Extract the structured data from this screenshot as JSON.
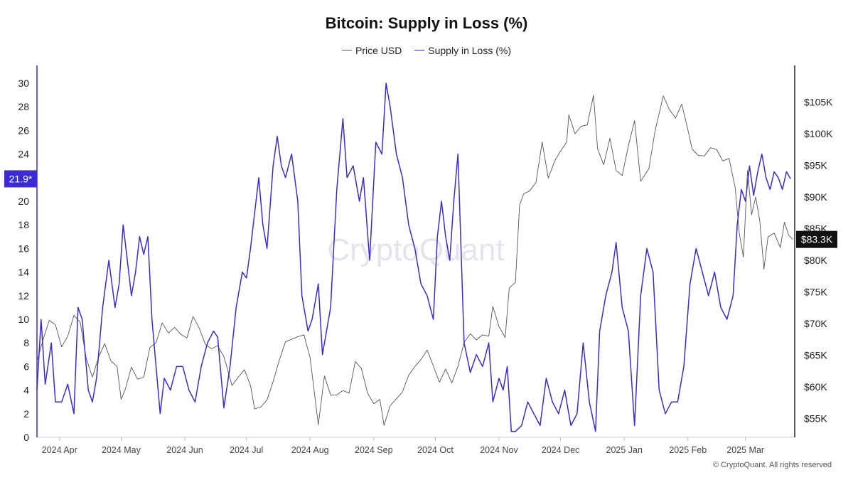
{
  "chart_data": {
    "type": "line",
    "title": "Bitcoin: Supply in Loss (%)",
    "legend": {
      "placement": "top-center"
    },
    "x_ticks": [
      "2024 Apr",
      "2024 May",
      "2024 Jun",
      "2024 Jul",
      "2024 Aug",
      "2024 Sep",
      "2024 Oct",
      "2024 Nov",
      "2024 Dec",
      "2025 Jan",
      "2025 Feb",
      "2025 Mar"
    ],
    "xlim": [
      "2024-03-21",
      "2025-03-25"
    ],
    "y_left": {
      "ticks": [
        0,
        2,
        4,
        6,
        8,
        10,
        12,
        14,
        16,
        18,
        20,
        22,
        24,
        26,
        28,
        30
      ],
      "range": [
        0,
        30
      ],
      "current_badge": "21.9*"
    },
    "y_right": {
      "ticks": [
        "$55K",
        "$60K",
        "$65K",
        "$70K",
        "$75K",
        "$80K",
        "$85K",
        "$90K",
        "$95K",
        "$100K",
        "$105K"
      ],
      "range": [
        52000,
        108000
      ],
      "current_badge": "$83.3K"
    },
    "series": [
      {
        "name": "Price USD",
        "axis": "right",
        "color": "#555555",
        "points": [
          [
            "2024-03-21",
            64000
          ],
          [
            "2024-03-24",
            67500
          ],
          [
            "2024-03-27",
            70500
          ],
          [
            "2024-03-30",
            69800
          ],
          [
            "2024-04-02",
            66300
          ],
          [
            "2024-04-05",
            68000
          ],
          [
            "2024-04-08",
            71300
          ],
          [
            "2024-04-11",
            70200
          ],
          [
            "2024-04-14",
            64500
          ],
          [
            "2024-04-17",
            61500
          ],
          [
            "2024-04-20",
            64700
          ],
          [
            "2024-04-23",
            66800
          ],
          [
            "2024-04-26",
            64100
          ],
          [
            "2024-04-29",
            63200
          ],
          [
            "2024-05-01",
            58000
          ],
          [
            "2024-05-03",
            59600
          ],
          [
            "2024-05-06",
            63100
          ],
          [
            "2024-05-09",
            61200
          ],
          [
            "2024-05-12",
            61500
          ],
          [
            "2024-05-15",
            66200
          ],
          [
            "2024-05-18",
            67000
          ],
          [
            "2024-05-21",
            70100
          ],
          [
            "2024-05-24",
            68500
          ],
          [
            "2024-05-27",
            69400
          ],
          [
            "2024-05-30",
            68300
          ],
          [
            "2024-06-02",
            67700
          ],
          [
            "2024-06-05",
            71100
          ],
          [
            "2024-06-08",
            69300
          ],
          [
            "2024-06-11",
            66700
          ],
          [
            "2024-06-14",
            66000
          ],
          [
            "2024-06-17",
            66500
          ],
          [
            "2024-06-20",
            64800
          ],
          [
            "2024-06-24",
            60200
          ],
          [
            "2024-06-27",
            61500
          ],
          [
            "2024-06-30",
            62700
          ],
          [
            "2024-07-03",
            60200
          ],
          [
            "2024-07-05",
            56500
          ],
          [
            "2024-07-08",
            56800
          ],
          [
            "2024-07-11",
            57900
          ],
          [
            "2024-07-14",
            60800
          ],
          [
            "2024-07-17",
            64200
          ],
          [
            "2024-07-20",
            67100
          ],
          [
            "2024-07-23",
            67500
          ],
          [
            "2024-07-26",
            67900
          ],
          [
            "2024-07-29",
            68200
          ],
          [
            "2024-08-01",
            64600
          ],
          [
            "2024-08-05",
            54000
          ],
          [
            "2024-08-08",
            61700
          ],
          [
            "2024-08-11",
            58700
          ],
          [
            "2024-08-14",
            58700
          ],
          [
            "2024-08-17",
            59400
          ],
          [
            "2024-08-20",
            59000
          ],
          [
            "2024-08-23",
            64000
          ],
          [
            "2024-08-26",
            62900
          ],
          [
            "2024-08-29",
            59000
          ],
          [
            "2024-09-01",
            57300
          ],
          [
            "2024-09-04",
            58000
          ],
          [
            "2024-09-06",
            53900
          ],
          [
            "2024-09-09",
            57000
          ],
          [
            "2024-09-12",
            58100
          ],
          [
            "2024-09-15",
            59200
          ],
          [
            "2024-09-18",
            61800
          ],
          [
            "2024-09-21",
            63200
          ],
          [
            "2024-09-24",
            64300
          ],
          [
            "2024-09-27",
            65800
          ],
          [
            "2024-09-30",
            63300
          ],
          [
            "2024-10-03",
            60700
          ],
          [
            "2024-10-06",
            62800
          ],
          [
            "2024-10-09",
            60600
          ],
          [
            "2024-10-12",
            63200
          ],
          [
            "2024-10-15",
            67000
          ],
          [
            "2024-10-18",
            68400
          ],
          [
            "2024-10-21",
            67400
          ],
          [
            "2024-10-24",
            68200
          ],
          [
            "2024-10-27",
            68000
          ],
          [
            "2024-10-29",
            72700
          ],
          [
            "2024-11-01",
            69500
          ],
          [
            "2024-11-04",
            67800
          ],
          [
            "2024-11-06",
            75600
          ],
          [
            "2024-11-09",
            76500
          ],
          [
            "2024-11-11",
            88700
          ],
          [
            "2024-11-13",
            90500
          ],
          [
            "2024-11-16",
            91000
          ],
          [
            "2024-11-19",
            92300
          ],
          [
            "2024-11-22",
            98700
          ],
          [
            "2024-11-25",
            93000
          ],
          [
            "2024-11-28",
            95600
          ],
          [
            "2024-12-01",
            97300
          ],
          [
            "2024-12-04",
            98700
          ],
          [
            "2024-12-05",
            103000
          ],
          [
            "2024-12-08",
            100000
          ],
          [
            "2024-12-11",
            101200
          ],
          [
            "2024-12-14",
            101400
          ],
          [
            "2024-12-17",
            106100
          ],
          [
            "2024-12-19",
            97600
          ],
          [
            "2024-12-22",
            95100
          ],
          [
            "2024-12-25",
            99300
          ],
          [
            "2024-12-28",
            94200
          ],
          [
            "2024-12-31",
            93400
          ],
          [
            "2025-01-03",
            98100
          ],
          [
            "2025-01-06",
            102100
          ],
          [
            "2025-01-09",
            92500
          ],
          [
            "2025-01-13",
            94500
          ],
          [
            "2025-01-16",
            100500
          ],
          [
            "2025-01-20",
            106000
          ],
          [
            "2025-01-23",
            103800
          ],
          [
            "2025-01-26",
            102500
          ],
          [
            "2025-01-29",
            104700
          ],
          [
            "2025-02-01",
            100600
          ],
          [
            "2025-02-03",
            97600
          ],
          [
            "2025-02-06",
            96600
          ],
          [
            "2025-02-09",
            96500
          ],
          [
            "2025-02-12",
            97800
          ],
          [
            "2025-02-15",
            97500
          ],
          [
            "2025-02-18",
            95700
          ],
          [
            "2025-02-21",
            96100
          ],
          [
            "2025-02-24",
            91500
          ],
          [
            "2025-02-26",
            84300
          ],
          [
            "2025-02-28",
            80500
          ],
          [
            "2025-03-02",
            94200
          ],
          [
            "2025-03-04",
            87200
          ],
          [
            "2025-03-06",
            90000
          ],
          [
            "2025-03-08",
            86200
          ],
          [
            "2025-03-10",
            78600
          ],
          [
            "2025-03-12",
            83700
          ],
          [
            "2025-03-15",
            84300
          ],
          [
            "2025-03-18",
            82000
          ],
          [
            "2025-03-20",
            86000
          ],
          [
            "2025-03-22",
            84000
          ],
          [
            "2025-03-24",
            83300
          ]
        ]
      },
      {
        "name": "Supply in Loss (%)",
        "axis": "left",
        "color": "#3a2bd6",
        "points": [
          [
            "2024-03-21",
            4
          ],
          [
            "2024-03-23",
            10
          ],
          [
            "2024-03-25",
            4.5
          ],
          [
            "2024-03-28",
            8
          ],
          [
            "2024-03-30",
            3
          ],
          [
            "2024-04-02",
            3
          ],
          [
            "2024-04-05",
            4.5
          ],
          [
            "2024-04-08",
            2
          ],
          [
            "2024-04-10",
            11
          ],
          [
            "2024-04-12",
            10
          ],
          [
            "2024-04-15",
            4
          ],
          [
            "2024-04-17",
            3
          ],
          [
            "2024-04-19",
            5
          ],
          [
            "2024-04-22",
            11
          ],
          [
            "2024-04-25",
            15
          ],
          [
            "2024-04-28",
            11
          ],
          [
            "2024-04-30",
            13
          ],
          [
            "2024-05-02",
            18
          ],
          [
            "2024-05-04",
            15
          ],
          [
            "2024-05-06",
            12
          ],
          [
            "2024-05-08",
            14
          ],
          [
            "2024-05-10",
            17
          ],
          [
            "2024-05-12",
            15.5
          ],
          [
            "2024-05-14",
            17
          ],
          [
            "2024-05-16",
            10
          ],
          [
            "2024-05-20",
            2
          ],
          [
            "2024-05-22",
            5
          ],
          [
            "2024-05-25",
            4
          ],
          [
            "2024-05-28",
            6
          ],
          [
            "2024-05-31",
            6
          ],
          [
            "2024-06-03",
            4
          ],
          [
            "2024-06-06",
            3
          ],
          [
            "2024-06-09",
            6
          ],
          [
            "2024-06-12",
            8
          ],
          [
            "2024-06-15",
            9
          ],
          [
            "2024-06-17",
            8.5
          ],
          [
            "2024-06-20",
            2.5
          ],
          [
            "2024-06-23",
            6
          ],
          [
            "2024-06-26",
            11
          ],
          [
            "2024-06-29",
            14
          ],
          [
            "2024-07-01",
            13.5
          ],
          [
            "2024-07-03",
            16
          ],
          [
            "2024-07-05",
            19
          ],
          [
            "2024-07-07",
            22
          ],
          [
            "2024-07-09",
            18
          ],
          [
            "2024-07-11",
            16
          ],
          [
            "2024-07-14",
            23
          ],
          [
            "2024-07-16",
            25.5
          ],
          [
            "2024-07-18",
            23
          ],
          [
            "2024-07-20",
            22
          ],
          [
            "2024-07-23",
            24
          ],
          [
            "2024-07-26",
            20
          ],
          [
            "2024-07-28",
            12
          ],
          [
            "2024-07-31",
            9
          ],
          [
            "2024-08-02",
            10
          ],
          [
            "2024-08-05",
            13
          ],
          [
            "2024-08-07",
            7
          ],
          [
            "2024-08-09",
            9
          ],
          [
            "2024-08-11",
            11
          ],
          [
            "2024-08-14",
            21
          ],
          [
            "2024-08-17",
            27
          ],
          [
            "2024-08-19",
            22
          ],
          [
            "2024-08-22",
            23
          ],
          [
            "2024-08-25",
            20
          ],
          [
            "2024-08-27",
            22
          ],
          [
            "2024-08-30",
            15
          ],
          [
            "2024-09-02",
            25
          ],
          [
            "2024-09-05",
            24
          ],
          [
            "2024-09-07",
            30
          ],
          [
            "2024-09-09",
            28
          ],
          [
            "2024-09-12",
            24
          ],
          [
            "2024-09-15",
            22
          ],
          [
            "2024-09-18",
            18
          ],
          [
            "2024-09-21",
            16
          ],
          [
            "2024-09-24",
            13
          ],
          [
            "2024-09-27",
            12
          ],
          [
            "2024-09-30",
            10
          ],
          [
            "2024-10-02",
            17
          ],
          [
            "2024-10-04",
            20
          ],
          [
            "2024-10-06",
            17
          ],
          [
            "2024-10-08",
            15
          ],
          [
            "2024-10-10",
            20
          ],
          [
            "2024-10-12",
            24
          ],
          [
            "2024-10-15",
            8
          ],
          [
            "2024-10-18",
            5.5
          ],
          [
            "2024-10-21",
            7
          ],
          [
            "2024-10-24",
            6
          ],
          [
            "2024-10-27",
            8
          ],
          [
            "2024-10-29",
            3
          ],
          [
            "2024-11-01",
            5
          ],
          [
            "2024-11-03",
            4
          ],
          [
            "2024-11-05",
            6
          ],
          [
            "2024-11-07",
            0.5
          ],
          [
            "2024-11-09",
            0.5
          ],
          [
            "2024-11-12",
            1
          ],
          [
            "2024-11-15",
            3
          ],
          [
            "2024-11-18",
            2
          ],
          [
            "2024-11-21",
            1
          ],
          [
            "2024-11-24",
            5
          ],
          [
            "2024-11-27",
            3
          ],
          [
            "2024-11-30",
            2
          ],
          [
            "2024-12-03",
            4
          ],
          [
            "2024-12-06",
            1
          ],
          [
            "2024-12-09",
            2
          ],
          [
            "2024-12-12",
            8
          ],
          [
            "2024-12-15",
            3
          ],
          [
            "2024-12-18",
            0.5
          ],
          [
            "2024-12-20",
            9
          ],
          [
            "2024-12-23",
            12
          ],
          [
            "2024-12-26",
            14
          ],
          [
            "2024-12-28",
            16.5
          ],
          [
            "2024-12-31",
            11
          ],
          [
            "2025-01-03",
            9
          ],
          [
            "2025-01-06",
            1
          ],
          [
            "2025-01-09",
            12
          ],
          [
            "2025-01-12",
            16
          ],
          [
            "2025-01-15",
            14
          ],
          [
            "2025-01-18",
            4
          ],
          [
            "2025-01-21",
            2
          ],
          [
            "2025-01-24",
            3
          ],
          [
            "2025-01-27",
            3
          ],
          [
            "2025-01-30",
            6
          ],
          [
            "2025-02-02",
            13
          ],
          [
            "2025-02-05",
            16
          ],
          [
            "2025-02-08",
            14
          ],
          [
            "2025-02-11",
            12
          ],
          [
            "2025-02-14",
            14
          ],
          [
            "2025-02-17",
            11
          ],
          [
            "2025-02-20",
            10
          ],
          [
            "2025-02-23",
            12
          ],
          [
            "2025-02-25",
            18
          ],
          [
            "2025-02-27",
            21
          ],
          [
            "2025-03-01",
            20
          ],
          [
            "2025-03-03",
            23
          ],
          [
            "2025-03-05",
            20.5
          ],
          [
            "2025-03-07",
            22.5
          ],
          [
            "2025-03-09",
            24
          ],
          [
            "2025-03-11",
            22
          ],
          [
            "2025-03-13",
            21
          ],
          [
            "2025-03-15",
            22.5
          ],
          [
            "2025-03-17",
            22
          ],
          [
            "2025-03-19",
            21
          ],
          [
            "2025-03-21",
            22.5
          ],
          [
            "2025-03-23",
            21.9
          ]
        ]
      }
    ],
    "grid": false,
    "watermark": "CryptoQuant",
    "copyright": "© CryptoQuant. All rights reserved"
  }
}
